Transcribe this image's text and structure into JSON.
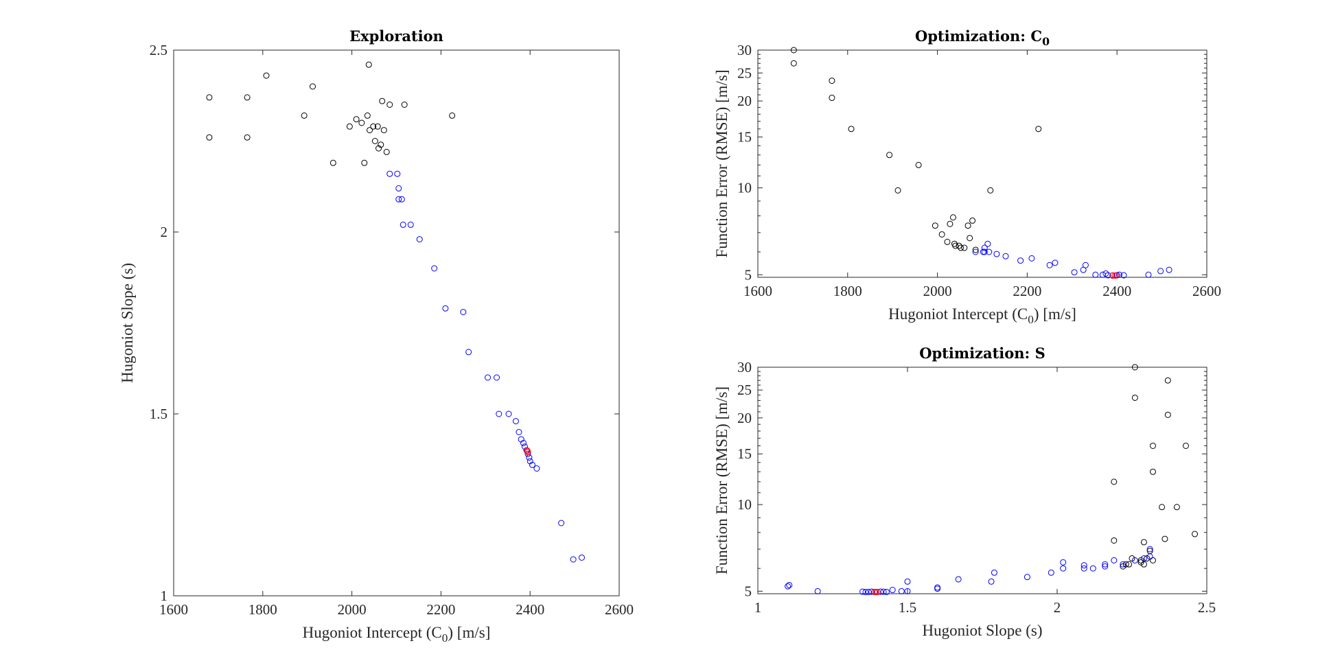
{
  "colors": {
    "explore": "#000000",
    "optimize": "#0000FF",
    "best": "#FF0000",
    "axis": "#262626"
  },
  "chart_data": [
    {
      "type": "scatter",
      "title": "Exploration",
      "xlabel": "Hugoniot Intercept (C",
      "xlabel_sub": "0",
      "xlabel_tail": ") [m/s]",
      "ylabel": "Hugoniot Slope (s)",
      "xlim": [
        1600,
        2600
      ],
      "ylim": [
        1,
        2.5
      ],
      "xticks": [
        1600,
        1800,
        2000,
        2200,
        2400,
        2600
      ],
      "yticks": [
        1,
        1.5,
        2,
        2.5
      ],
      "xtick_labels": [
        "1600",
        "1800",
        "2000",
        "2200",
        "2400",
        "2600"
      ],
      "ytick_labels": [
        "1",
        "1.5",
        "2",
        "2.5"
      ],
      "yscale": "linear",
      "series": [
        {
          "color": "#000000",
          "points": [
            [
              1680,
              2.37
            ],
            [
              1680,
              2.26
            ],
            [
              1765,
              2.37
            ],
            [
              1765,
              2.26
            ],
            [
              1808,
              2.43
            ],
            [
              1893,
              2.32
            ],
            [
              1912,
              2.4
            ],
            [
              1958,
              2.19
            ],
            [
              1995,
              2.29
            ],
            [
              2010,
              2.31
            ],
            [
              2022,
              2.3
            ],
            [
              2028,
              2.19
            ],
            [
              2035,
              2.32
            ],
            [
              2038,
              2.46
            ],
            [
              2040,
              2.28
            ],
            [
              2048,
              2.29
            ],
            [
              2052,
              2.25
            ],
            [
              2058,
              2.29
            ],
            [
              2060,
              2.23
            ],
            [
              2065,
              2.24
            ],
            [
              2068,
              2.36
            ],
            [
              2072,
              2.28
            ],
            [
              2078,
              2.22
            ],
            [
              2085,
              2.35
            ],
            [
              2118,
              2.35
            ],
            [
              2225,
              2.32
            ]
          ]
        },
        {
          "color": "#0000FF",
          "points": [
            [
              2085,
              2.16
            ],
            [
              2102,
              2.16
            ],
            [
              2105,
              2.12
            ],
            [
              2105,
              2.09
            ],
            [
              2112,
              2.09
            ],
            [
              2115,
              2.02
            ],
            [
              2132,
              2.02
            ],
            [
              2152,
              1.98
            ],
            [
              2185,
              1.9
            ],
            [
              2210,
              1.79
            ],
            [
              2250,
              1.78
            ],
            [
              2262,
              1.67
            ],
            [
              2305,
              1.6
            ],
            [
              2325,
              1.6
            ],
            [
              2330,
              1.5
            ],
            [
              2352,
              1.5
            ],
            [
              2368,
              1.48
            ],
            [
              2375,
              1.45
            ],
            [
              2380,
              1.43
            ],
            [
              2385,
              1.42
            ],
            [
              2388,
              1.41
            ],
            [
              2392,
              1.4
            ],
            [
              2395,
              1.39
            ],
            [
              2398,
              1.38
            ],
            [
              2400,
              1.37
            ],
            [
              2405,
              1.36
            ],
            [
              2415,
              1.35
            ],
            [
              2470,
              1.2
            ],
            [
              2497,
              1.1
            ],
            [
              2516,
              1.105
            ]
          ]
        },
        {
          "color": "#FF0000",
          "points": [
            [
              2393,
              1.4
            ],
            [
              2395,
              1.395
            ],
            [
              2394,
              1.398
            ]
          ]
        }
      ]
    },
    {
      "type": "scatter",
      "title": "Optimization: C",
      "title_sub": "0",
      "xlabel": "Hugoniot Intercept (C",
      "xlabel_sub": "0",
      "xlabel_tail": ") [m/s]",
      "ylabel": "Function Error (RMSE) [m/s]",
      "xlim": [
        1600,
        2600
      ],
      "ylim": [
        4.9,
        30
      ],
      "xticks": [
        1600,
        1800,
        2000,
        2200,
        2400,
        2600
      ],
      "yticks": [
        5,
        10,
        15,
        20,
        25,
        30
      ],
      "xtick_labels": [
        "1600",
        "1800",
        "2000",
        "2200",
        "2400",
        "2600"
      ],
      "ytick_labels": [
        "5",
        "10",
        "15",
        "20",
        "25",
        "30"
      ],
      "yscale": "log",
      "series": [
        {
          "color": "#000000",
          "points": [
            [
              1680,
              30
            ],
            [
              1680,
              27
            ],
            [
              1765,
              23.5
            ],
            [
              1765,
              20.5
            ],
            [
              1808,
              16
            ],
            [
              1893,
              13
            ],
            [
              1912,
              9.8
            ],
            [
              1958,
              12
            ],
            [
              1995,
              7.4
            ],
            [
              2010,
              6.9
            ],
            [
              2022,
              6.5
            ],
            [
              2028,
              7.5
            ],
            [
              2035,
              7.9
            ],
            [
              2038,
              6.4
            ],
            [
              2040,
              6.3
            ],
            [
              2048,
              6.3
            ],
            [
              2052,
              6.2
            ],
            [
              2060,
              6.2
            ],
            [
              2068,
              7.4
            ],
            [
              2072,
              6.7
            ],
            [
              2078,
              7.7
            ],
            [
              2085,
              6.1
            ],
            [
              2118,
              9.8
            ],
            [
              2225,
              16
            ]
          ]
        },
        {
          "color": "#0000FF",
          "points": [
            [
              2085,
              6.0
            ],
            [
              2102,
              6.0
            ],
            [
              2105,
              6.0
            ],
            [
              2105,
              6.2
            ],
            [
              2112,
              6.4
            ],
            [
              2115,
              6.0
            ],
            [
              2132,
              5.9
            ],
            [
              2152,
              5.8
            ],
            [
              2185,
              5.6
            ],
            [
              2210,
              5.7
            ],
            [
              2250,
              5.4
            ],
            [
              2262,
              5.5
            ],
            [
              2305,
              5.1
            ],
            [
              2325,
              5.2
            ],
            [
              2330,
              5.4
            ],
            [
              2352,
              5.0
            ],
            [
              2368,
              5.0
            ],
            [
              2375,
              5.05
            ],
            [
              2380,
              4.98
            ],
            [
              2390,
              4.97
            ],
            [
              2400,
              4.98
            ],
            [
              2405,
              5.0
            ],
            [
              2415,
              4.98
            ],
            [
              2470,
              5.0
            ],
            [
              2497,
              5.15
            ],
            [
              2516,
              5.2
            ]
          ]
        },
        {
          "color": "#FF0000",
          "points": [
            [
              2390,
              4.97
            ],
            [
              2395,
              4.97
            ],
            [
              2398,
              4.97
            ]
          ]
        }
      ]
    },
    {
      "type": "scatter",
      "title": "Optimization: S",
      "xlabel": "Hugoniot Slope (s)",
      "ylabel": "Function Error (RMSE) [m/s]",
      "xlim": [
        1,
        2.5
      ],
      "ylim": [
        4.9,
        30
      ],
      "xticks": [
        1,
        1.5,
        2,
        2.5
      ],
      "yticks": [
        5,
        10,
        15,
        20,
        25,
        30
      ],
      "xtick_labels": [
        "1",
        "1.5",
        "2",
        "2.5"
      ],
      "ytick_labels": [
        "5",
        "10",
        "15",
        "20",
        "25",
        "30"
      ],
      "yscale": "log",
      "series": [
        {
          "color": "#000000",
          "points": [
            [
              2.26,
              30
            ],
            [
              2.37,
              27
            ],
            [
              2.26,
              23.5
            ],
            [
              2.37,
              20.5
            ],
            [
              2.43,
              16
            ],
            [
              2.32,
              16
            ],
            [
              2.32,
              13
            ],
            [
              2.4,
              9.8
            ],
            [
              2.19,
              12
            ],
            [
              2.29,
              7.4
            ],
            [
              2.31,
              6.9
            ],
            [
              2.3,
              6.5
            ],
            [
              2.19,
              7.5
            ],
            [
              2.32,
              6.4
            ],
            [
              2.28,
              6.3
            ],
            [
              2.29,
              6.2
            ],
            [
              2.24,
              6.2
            ],
            [
              2.25,
              6.5
            ],
            [
              2.36,
              7.6
            ],
            [
              2.28,
              6.4
            ],
            [
              2.46,
              7.9
            ],
            [
              2.35,
              9.8
            ],
            [
              2.22,
              6.1
            ],
            [
              2.23,
              6.2
            ]
          ]
        },
        {
          "color": "#0000FF",
          "points": [
            [
              1.1,
              5.2
            ],
            [
              1.105,
              5.25
            ],
            [
              1.2,
              5.0
            ],
            [
              1.35,
              4.98
            ],
            [
              1.36,
              4.97
            ],
            [
              1.37,
              4.97
            ],
            [
              1.38,
              4.98
            ],
            [
              1.39,
              4.97
            ],
            [
              1.41,
              4.98
            ],
            [
              1.42,
              4.98
            ],
            [
              1.43,
              4.97
            ],
            [
              1.45,
              5.05
            ],
            [
              1.48,
              5.0
            ],
            [
              1.5,
              5.0
            ],
            [
              1.5,
              5.4
            ],
            [
              1.6,
              5.1
            ],
            [
              1.6,
              5.15
            ],
            [
              1.67,
              5.5
            ],
            [
              1.78,
              5.4
            ],
            [
              1.79,
              5.8
            ],
            [
              1.9,
              5.6
            ],
            [
              1.98,
              5.8
            ],
            [
              2.02,
              6.0
            ],
            [
              2.02,
              6.3
            ],
            [
              2.09,
              6.0
            ],
            [
              2.09,
              6.15
            ],
            [
              2.12,
              6.0
            ],
            [
              2.16,
              6.2
            ],
            [
              2.16,
              6.1
            ],
            [
              2.19,
              6.4
            ],
            [
              2.22,
              6.2
            ],
            [
              2.26,
              6.4
            ],
            [
              2.29,
              6.5
            ],
            [
              2.31,
              6.6
            ],
            [
              2.31,
              7.0
            ]
          ]
        },
        {
          "color": "#FF0000",
          "points": [
            [
              1.39,
              4.97
            ],
            [
              1.4,
              4.97
            ],
            [
              1.395,
              4.97
            ]
          ]
        }
      ]
    }
  ]
}
